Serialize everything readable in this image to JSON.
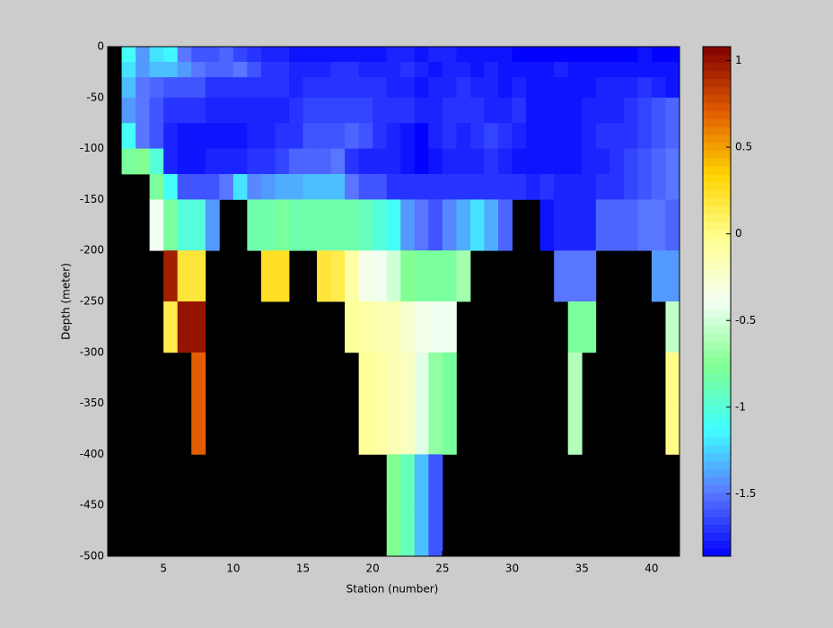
{
  "chart_data": {
    "type": "heatmap",
    "xlabel": "Station (number)",
    "ylabel": "Depth (meter)",
    "x": [
      2,
      3,
      4,
      5,
      6,
      7,
      8,
      9,
      10,
      11,
      12,
      13,
      14,
      15,
      16,
      17,
      18,
      19,
      20,
      21,
      22,
      23,
      24,
      25,
      26,
      27,
      28,
      29,
      30,
      31,
      32,
      33,
      34,
      35,
      36,
      37,
      38,
      39,
      40,
      41,
      42
    ],
    "y": [
      0,
      -15,
      -30,
      -50,
      -75,
      -100,
      -125,
      -150,
      -200,
      -250,
      -300,
      -350,
      -400,
      -450,
      -500
    ],
    "z": [
      [
        -1.1,
        -1.4,
        -1.2,
        -1.15,
        -1.5,
        -1.6,
        -1.6,
        -1.55,
        -1.65,
        -1.7,
        -1.75,
        -1.75,
        -1.8,
        -1.8,
        -1.8,
        -1.8,
        -1.8,
        -1.8,
        -1.8,
        -1.75,
        -1.75,
        -1.8,
        -1.75,
        -1.75,
        -1.8,
        -1.8,
        -1.8,
        -1.8,
        -1.85,
        -1.85,
        -1.85,
        -1.85,
        -1.85,
        -1.85,
        -1.85,
        -1.85,
        -1.85,
        -1.8,
        -1.85,
        -1.85
      ],
      [
        -1.2,
        -1.4,
        -1.3,
        -1.3,
        -1.4,
        -1.5,
        -1.55,
        -1.55,
        -1.5,
        -1.6,
        -1.7,
        -1.7,
        -1.75,
        -1.75,
        -1.75,
        -1.7,
        -1.7,
        -1.75,
        -1.75,
        -1.75,
        -1.7,
        -1.75,
        -1.8,
        -1.75,
        -1.75,
        -1.8,
        -1.75,
        -1.8,
        -1.8,
        -1.8,
        -1.8,
        -1.75,
        -1.8,
        -1.8,
        -1.8,
        -1.8,
        -1.8,
        -1.8,
        -1.8,
        -1.8
      ],
      [
        -1.3,
        -1.5,
        -1.55,
        -1.6,
        -1.6,
        -1.6,
        -1.7,
        -1.7,
        -1.7,
        -1.7,
        -1.7,
        -1.7,
        -1.75,
        -1.7,
        -1.7,
        -1.7,
        -1.7,
        -1.7,
        -1.7,
        -1.75,
        -1.75,
        -1.8,
        -1.75,
        -1.75,
        -1.7,
        -1.75,
        -1.75,
        -1.8,
        -1.75,
        -1.8,
        -1.8,
        -1.8,
        -1.8,
        -1.8,
        -1.75,
        -1.75,
        -1.75,
        -1.7,
        -1.75,
        -1.8
      ],
      [
        -1.4,
        -1.5,
        -1.6,
        -1.7,
        -1.7,
        -1.7,
        -1.75,
        -1.75,
        -1.75,
        -1.75,
        -1.75,
        -1.75,
        -1.7,
        -1.65,
        -1.65,
        -1.65,
        -1.65,
        -1.65,
        -1.7,
        -1.7,
        -1.7,
        -1.75,
        -1.75,
        -1.7,
        -1.7,
        -1.7,
        -1.75,
        -1.75,
        -1.7,
        -1.8,
        -1.8,
        -1.8,
        -1.8,
        -1.75,
        -1.75,
        -1.75,
        -1.7,
        -1.65,
        -1.6,
        -1.55
      ],
      [
        -1.1,
        -1.5,
        -1.6,
        -1.75,
        -1.8,
        -1.8,
        -1.8,
        -1.8,
        -1.8,
        -1.75,
        -1.75,
        -1.7,
        -1.7,
        -1.6,
        -1.6,
        -1.6,
        -1.55,
        -1.6,
        -1.7,
        -1.75,
        -1.8,
        -1.85,
        -1.75,
        -1.7,
        -1.75,
        -1.7,
        -1.65,
        -1.7,
        -1.75,
        -1.8,
        -1.8,
        -1.8,
        -1.8,
        -1.75,
        -1.7,
        -1.7,
        -1.7,
        -1.65,
        -1.6,
        -1.55
      ],
      [
        -0.8,
        -0.75,
        -1.0,
        -1.75,
        -1.8,
        -1.8,
        -1.75,
        -1.75,
        -1.75,
        -1.7,
        -1.7,
        -1.65,
        -1.55,
        -1.55,
        -1.55,
        -1.5,
        -1.7,
        -1.75,
        -1.75,
        -1.75,
        -1.8,
        -1.85,
        -1.8,
        -1.75,
        -1.75,
        -1.75,
        -1.7,
        -1.75,
        -1.8,
        -1.8,
        -1.8,
        -1.8,
        -1.8,
        -1.75,
        -1.75,
        -1.7,
        -1.65,
        -1.6,
        -1.55,
        -1.5
      ],
      [
        null,
        null,
        -0.8,
        -1.1,
        -1.6,
        -1.6,
        -1.6,
        -1.5,
        -1.2,
        -1.45,
        -1.4,
        -1.35,
        -1.35,
        -1.3,
        -1.3,
        -1.3,
        -1.5,
        -1.6,
        -1.6,
        -1.7,
        -1.7,
        -1.7,
        -1.7,
        -1.7,
        -1.7,
        -1.7,
        -1.7,
        -1.7,
        -1.7,
        -1.75,
        -1.7,
        -1.75,
        -1.75,
        -1.75,
        -1.7,
        -1.7,
        -1.65,
        -1.6,
        -1.55,
        -1.5
      ],
      [
        null,
        null,
        -0.4,
        -0.8,
        -1.0,
        -1.0,
        -1.4,
        null,
        null,
        -0.85,
        -0.85,
        -0.8,
        -0.85,
        -0.85,
        -0.85,
        -0.85,
        -0.85,
        -0.9,
        -1.0,
        -1.1,
        -1.4,
        -1.5,
        -1.6,
        -1.45,
        -1.35,
        -1.2,
        -1.35,
        -1.55,
        null,
        null,
        -1.8,
        -1.75,
        -1.75,
        -1.75,
        -1.55,
        -1.55,
        -1.55,
        -1.5,
        -1.5,
        -1.55
      ],
      [
        null,
        null,
        null,
        0.95,
        0.2,
        0.2,
        null,
        null,
        null,
        null,
        0.25,
        0.25,
        null,
        null,
        0.2,
        0.15,
        -0.1,
        -0.35,
        -0.4,
        -0.5,
        -0.75,
        -0.8,
        -0.8,
        -0.8,
        -0.65,
        null,
        null,
        null,
        null,
        null,
        null,
        -1.5,
        -1.5,
        -1.5,
        null,
        null,
        null,
        null,
        -1.4,
        -1.4
      ],
      [
        null,
        null,
        null,
        0.15,
        1.0,
        1.0,
        null,
        null,
        null,
        null,
        null,
        null,
        null,
        null,
        null,
        null,
        -0.05,
        -0.1,
        -0.15,
        -0.15,
        -0.25,
        -0.35,
        -0.4,
        -0.4,
        null,
        null,
        null,
        null,
        null,
        null,
        null,
        null,
        -0.8,
        -0.8,
        null,
        null,
        null,
        null,
        null,
        -0.55
      ],
      [
        null,
        null,
        null,
        null,
        null,
        0.7,
        null,
        null,
        null,
        null,
        null,
        null,
        null,
        null,
        null,
        null,
        null,
        -0.05,
        -0.1,
        -0.15,
        -0.2,
        -0.45,
        -0.7,
        -0.8,
        null,
        null,
        null,
        null,
        null,
        null,
        null,
        null,
        -0.6,
        null,
        null,
        null,
        null,
        null,
        null,
        0.0
      ],
      [
        null,
        null,
        null,
        null,
        null,
        0.7,
        null,
        null,
        null,
        null,
        null,
        null,
        null,
        null,
        null,
        null,
        null,
        -0.05,
        -0.1,
        -0.15,
        -0.2,
        -0.45,
        -0.7,
        -0.8,
        null,
        null,
        null,
        null,
        null,
        null,
        null,
        null,
        -0.6,
        null,
        null,
        null,
        null,
        null,
        null,
        0.0
      ],
      [
        null,
        null,
        null,
        null,
        null,
        null,
        null,
        null,
        null,
        null,
        null,
        null,
        null,
        null,
        null,
        null,
        null,
        null,
        null,
        -0.75,
        -0.9,
        -1.3,
        -1.6,
        null,
        null,
        null,
        null,
        null,
        null,
        null,
        null,
        null,
        null,
        null,
        null,
        null,
        null,
        null,
        null,
        null
      ],
      [
        null,
        null,
        null,
        null,
        null,
        null,
        null,
        null,
        null,
        null,
        null,
        null,
        null,
        null,
        null,
        null,
        null,
        null,
        null,
        -0.75,
        -0.9,
        -1.3,
        -1.6,
        null,
        null,
        null,
        null,
        null,
        null,
        null,
        null,
        null,
        null,
        null,
        null,
        null,
        null,
        null,
        null,
        null
      ]
    ],
    "xlim": [
      1,
      42
    ],
    "ylim": [
      -500,
      0
    ],
    "xticks": [
      5,
      10,
      15,
      20,
      25,
      30,
      35,
      40
    ],
    "yticks": [
      0,
      -50,
      -100,
      -150,
      -200,
      -250,
      -300,
      -350,
      -400,
      -450,
      -500
    ],
    "clim": [
      -1.86,
      1.08
    ],
    "cticks": [
      -1.5,
      -1,
      -0.5,
      0,
      0.5,
      1
    ],
    "colormap": [
      "#0000ff",
      "#5a78ff",
      "#40ffff",
      "#80ff90",
      "#f4fff4",
      "#ffff90",
      "#ffd400",
      "#e05a00",
      "#800000"
    ],
    "nan_color": "#000000"
  }
}
